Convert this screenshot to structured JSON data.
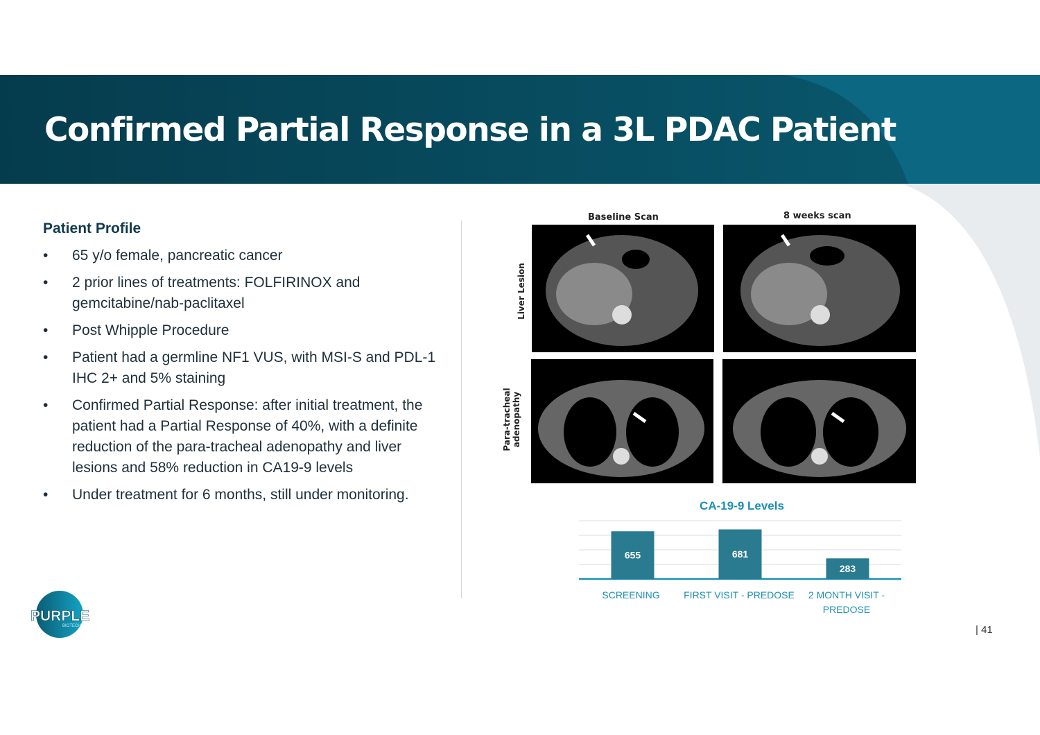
{
  "title": "Confirmed Partial Response in a 3L PDAC Patient",
  "profile": {
    "heading": "Patient Profile",
    "bullet": "•",
    "items": [
      "65 y/o female, pancreatic cancer",
      "2 prior lines of treatments: FOLFIRINOX and gemcitabine/nab-paclitaxel",
      "Post Whipple Procedure",
      "Patient had a germline NF1 VUS, with MSI-S and PDL-1 IHC 2+ and 5% staining",
      "Confirmed Partial Response: after initial treatment, the patient had a Partial Response of 40%, with a definite reduction of the para-tracheal adenopathy and liver lesions and 58% reduction in CA19-9 levels",
      "Under treatment for 6 months, still under monitoring."
    ]
  },
  "scans": {
    "col_labels": [
      "Baseline Scan",
      "8 weeks scan"
    ],
    "row_labels": [
      "Liver Lesion",
      "Para-tracheal adenopathy"
    ]
  },
  "chart_data": {
    "type": "bar",
    "title": "CA-19-9 Levels",
    "categories": [
      "SCREENING",
      "FIRST VISIT - PREDOSE",
      "2 MONTH VISIT - PREDOSE"
    ],
    "values": [
      655,
      681,
      283
    ],
    "ylim": [
      0,
      800
    ],
    "grid": true,
    "bar_color": "#2a7a90",
    "label_color": "#1b8fb5"
  },
  "logo": {
    "text": "PURPLE",
    "subtext": "BIOTECH"
  },
  "page_number": "| 41",
  "colors": {
    "header_dark": "#063e4f",
    "header_light": "#0a5c72"
  }
}
